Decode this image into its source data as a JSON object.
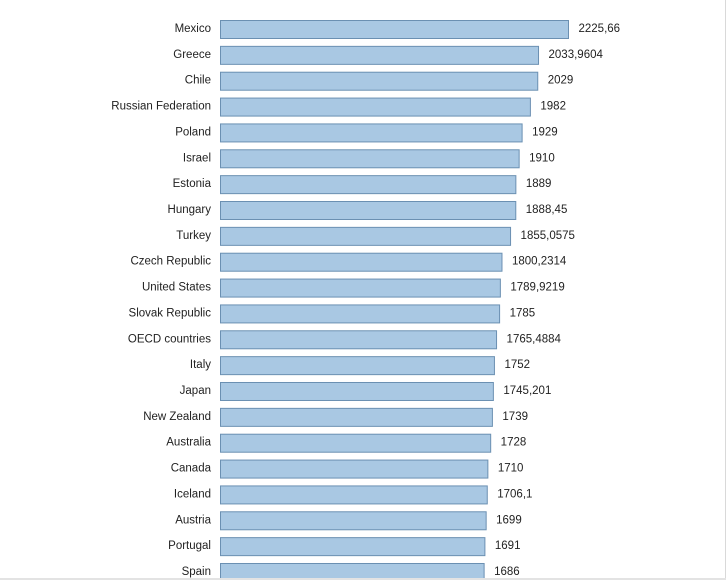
{
  "chart_data": {
    "type": "bar",
    "orientation": "horizontal",
    "categories": [
      "Mexico",
      "Greece",
      "Chile",
      "Russian Federation",
      "Poland",
      "Israel",
      "Estonia",
      "Hungary",
      "Turkey",
      "Czech Republic",
      "United States",
      "Slovak Republic",
      "OECD countries",
      "Italy",
      "Japan",
      "New Zealand",
      "Australia",
      "Canada",
      "Iceland",
      "Austria",
      "Portugal",
      "Spain"
    ],
    "values": [
      2225.66,
      2033.9604,
      2029,
      1982,
      1929,
      1910,
      1889,
      1888.45,
      1855.0575,
      1800.2314,
      1789.9219,
      1785,
      1765.4884,
      1752,
      1745.201,
      1739,
      1728,
      1710,
      1706.1,
      1699,
      1691,
      1686
    ],
    "value_labels": [
      "2225,66",
      "2033,9604",
      "2029",
      "1982",
      "1929",
      "1910",
      "1889",
      "1888,45",
      "1855,0575",
      "1800,2314",
      "1789,9219",
      "1785",
      "1765,4884",
      "1752",
      "1745,201",
      "1739",
      "1728",
      "1710",
      "1706,1",
      "1699",
      "1691",
      "1686"
    ],
    "title": "",
    "xlabel": "",
    "ylabel": "",
    "xlim": [
      0,
      2225.66
    ],
    "grid": false,
    "legend": "none",
    "colors": {
      "bar_fill": "#a9c8e3",
      "bar_stroke": "#6b90b2",
      "text": "#222222"
    }
  }
}
